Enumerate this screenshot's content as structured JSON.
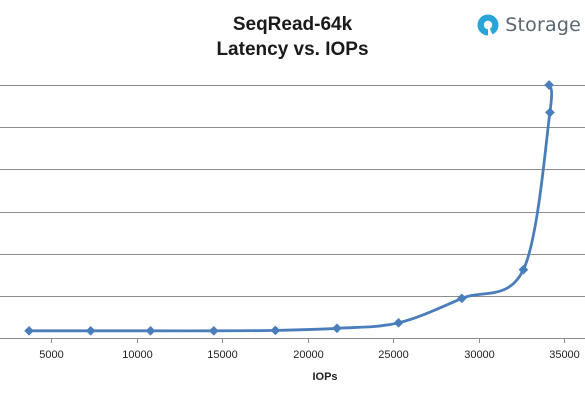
{
  "brand": {
    "text": "Storage",
    "icon": "storagereview-logo-icon",
    "accent": "#2aa4d8"
  },
  "chart_data": {
    "type": "line",
    "title_lines": [
      "SeqRead-64k",
      "Latency vs. IOPs"
    ],
    "xlabel": "IOPs",
    "ylabel": "",
    "xlim": [
      2000,
      36200
    ],
    "xticks": [
      5000,
      10000,
      15000,
      20000,
      25000,
      30000,
      35000
    ],
    "ylim": [
      0,
      6
    ],
    "ygrid_count": 6,
    "grid": "horizontal",
    "legend": "none",
    "line_color": "#4a7ebb",
    "series": [
      {
        "x": [
          3700,
          7300,
          10800,
          14500,
          18100,
          21700,
          25300,
          29000,
          32600,
          34150,
          34100
        ],
        "y": [
          0.17,
          0.17,
          0.17,
          0.17,
          0.18,
          0.23,
          0.36,
          0.94,
          1.62,
          5.35,
          6.0
        ]
      }
    ]
  }
}
